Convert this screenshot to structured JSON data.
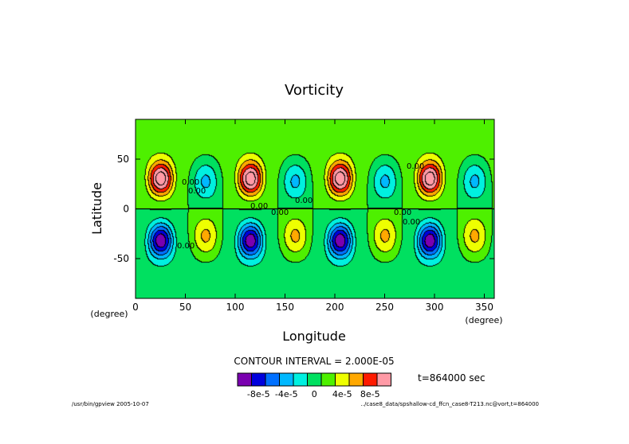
{
  "chart_data": {
    "type": "heatmap",
    "title": "Vorticity",
    "xlabel": "Longitude",
    "ylabel": "Latitude",
    "x_unit": "(degree)",
    "y_unit": "(degree)",
    "xlim": [
      0,
      360
    ],
    "ylim": [
      -90,
      90
    ],
    "x_ticks": [
      0,
      50,
      100,
      150,
      200,
      250,
      300,
      350
    ],
    "y_ticks": [
      -50,
      0,
      50
    ],
    "contour_interval_text": "CONTOUR INTERVAL = 2.000E-05",
    "time_text": "t=864000 sec",
    "contour_labels": [
      "0.00",
      "0.00",
      "0.00",
      "0.00",
      "0.00",
      "0.00",
      "0.00",
      "0.00",
      "0.00"
    ],
    "wavenumber": 4,
    "pattern": {
      "north_positive_peak": {
        "lat": 30,
        "value": 0.00011
      },
      "north_negative_trough": {
        "lat": 28,
        "value": -5e-05
      },
      "south_negative_peak": {
        "lat": -32,
        "value": -0.00011
      },
      "south_positive_trough": {
        "lat": -28,
        "value": 5e-05
      },
      "positive_center_lon": [
        70,
        160,
        250,
        340
      ]
    },
    "colorbar": {
      "levels": [
        -0.0001,
        -8e-05,
        -6e-05,
        -4e-05,
        -2e-05,
        0,
        2e-05,
        4e-05,
        6e-05,
        8e-05,
        0.0001
      ],
      "colors": [
        "#7a00b0",
        "#0000dd",
        "#0070ff",
        "#00b8ff",
        "#00f0e0",
        "#00e060",
        "#4ef000",
        "#eeff00",
        "#ffa800",
        "#ff1a00",
        "#ff9aa6"
      ],
      "tick_labels": [
        "-8e-5",
        "-4e-5",
        "0",
        "4e-5",
        "8e-5"
      ]
    }
  },
  "footer": {
    "left": "/usr/bin/gpview  2005-10-07",
    "right": "../case8_data/spshallow-cd_ffcn_case8-T213.nc@vort,t=864000"
  }
}
